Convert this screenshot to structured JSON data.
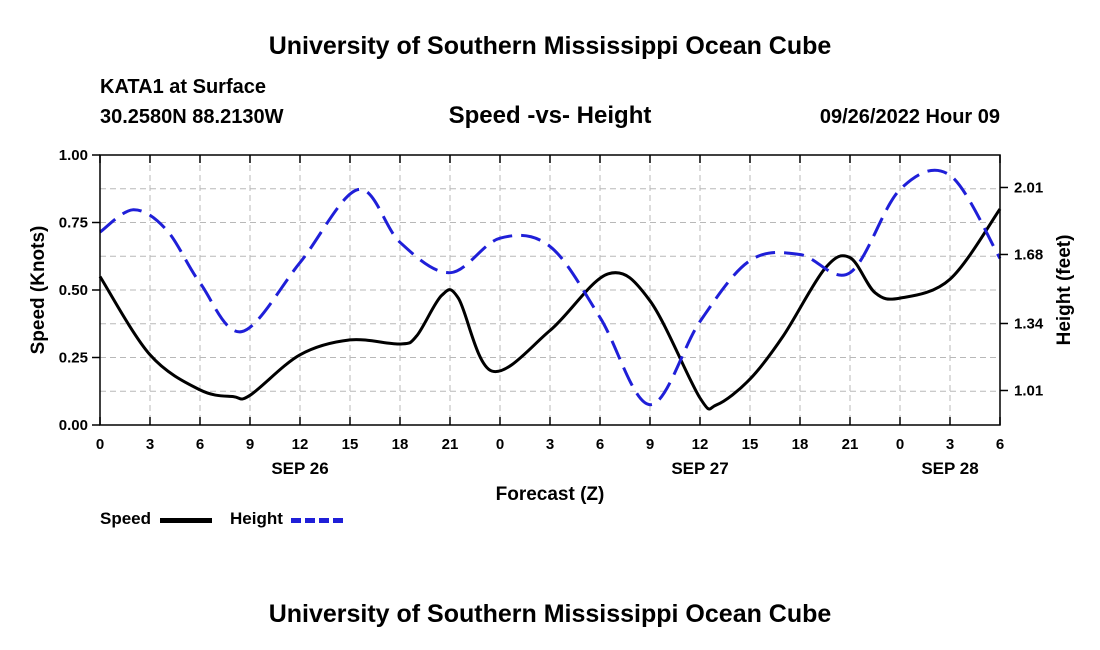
{
  "header": {
    "title_top": "University of Southern Mississippi Ocean Cube",
    "title_bottom": "University of Southern Mississippi Ocean Cube",
    "station": "KATA1 at Surface",
    "coords": "30.2580N  88.2130W",
    "chart_title": "Speed -vs- Height",
    "date": "09/26/2022 Hour 09"
  },
  "legend": {
    "speed_label": "Speed",
    "height_label": "Height"
  },
  "chart_data": {
    "type": "line",
    "title": "Speed -vs- Height",
    "xlabel": "Forecast (Z)",
    "ylabel_left": "Speed (Knots)",
    "ylabel_right": "Height (feet)",
    "xlim": [
      0,
      54
    ],
    "ylim_left": [
      0,
      1
    ],
    "ylim_right": [
      0.84,
      2.17
    ],
    "grid": true,
    "legend_position": "bottom-left",
    "x_ticks": [
      0,
      3,
      6,
      9,
      12,
      15,
      18,
      21,
      24,
      27,
      30,
      33,
      36,
      39,
      42,
      45,
      48,
      51,
      54
    ],
    "x_tick_labels": [
      "0",
      "3",
      "6",
      "9",
      "12",
      "15",
      "18",
      "21",
      "0",
      "3",
      "6",
      "9",
      "12",
      "15",
      "18",
      "21",
      "0",
      "3",
      "6"
    ],
    "day_labels": [
      {
        "x": 12,
        "label": "SEP 26"
      },
      {
        "x": 36,
        "label": "SEP 27"
      },
      {
        "x": 51,
        "label": "SEP 28"
      }
    ],
    "y_left_ticks": [
      0,
      0.25,
      0.5,
      0.75,
      1
    ],
    "y_left_tick_labels": [
      "0.00",
      "0.25",
      "0.50",
      "0.75",
      "1.00"
    ],
    "y_right_ticks": [
      1.01,
      1.34,
      1.68,
      2.01
    ],
    "y_right_tick_labels": [
      "1.01",
      "1.34",
      "1.68",
      "2.01"
    ],
    "series": [
      {
        "name": "Speed",
        "axis": "left",
        "color": "#000000",
        "style": "solid",
        "x": [
          0,
          3,
          6,
          8,
          9,
          12,
          15,
          18,
          19,
          20.5,
          21.5,
          23.5,
          27,
          30.5,
          33,
          36,
          37,
          39,
          41,
          43.5,
          45,
          46.5,
          48,
          51,
          54
        ],
        "y": [
          0.55,
          0.26,
          0.13,
          0.105,
          0.11,
          0.26,
          0.315,
          0.3,
          0.33,
          0.48,
          0.47,
          0.2,
          0.35,
          0.56,
          0.46,
          0.1,
          0.075,
          0.17,
          0.33,
          0.58,
          0.62,
          0.49,
          0.47,
          0.54,
          0.8
        ]
      },
      {
        "name": "Height",
        "axis": "right",
        "color": "#1f1fd8",
        "style": "dashed",
        "x": [
          0,
          2,
          4,
          6,
          8.5,
          12,
          15.5,
          18,
          21,
          24,
          27,
          30,
          33,
          36,
          39,
          42,
          45,
          48,
          51,
          54
        ],
        "y": [
          1.79,
          1.9,
          1.8,
          1.54,
          1.3,
          1.64,
          2.0,
          1.74,
          1.59,
          1.76,
          1.72,
          1.37,
          0.94,
          1.35,
          1.65,
          1.68,
          1.59,
          2.0,
          2.07,
          1.66
        ]
      }
    ]
  }
}
